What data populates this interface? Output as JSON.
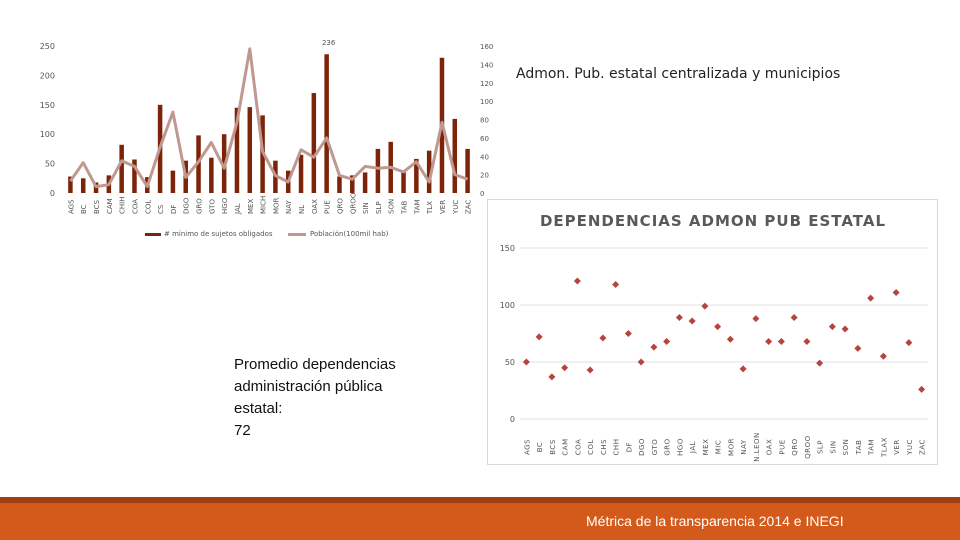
{
  "slide": {
    "title_chart1": "Admon. Pub. estatal centralizada y municipios",
    "note_lines": [
      "Promedio dependencias",
      "administración pública",
      "estatal:",
      "72"
    ],
    "footer": "Métrica de la transparencia 2014 e INEGI"
  },
  "colors": {
    "bar": "#7b2409",
    "line": "#c09890",
    "point": "#b5453c",
    "footer": "#d45a1b",
    "footer_dark": "#a23f12"
  },
  "chart_data": [
    {
      "type": "bar",
      "categories": [
        "AGS",
        "BC",
        "BCS",
        "CAM",
        "CHIH",
        "COA",
        "COL",
        "CS",
        "DF",
        "DGO",
        "GRO",
        "GTO",
        "HGO",
        "JAL",
        "MEX",
        "MICH",
        "MOR",
        "NAY",
        "NL",
        "OAX",
        "PUE",
        "QRO",
        "QROO",
        "SIN",
        "SLP",
        "SON",
        "TAB",
        "TAM",
        "TLX",
        "VER",
        "YUC",
        "ZAC"
      ],
      "series": [
        {
          "name": "# mínimo de sujetos obligados",
          "axis": "left",
          "values": [
            28,
            25,
            18,
            30,
            82,
            57,
            27,
            150,
            38,
            55,
            98,
            60,
            100,
            145,
            146,
            132,
            55,
            38,
            65,
            170,
            236,
            28,
            30,
            35,
            75,
            87,
            38,
            58,
            72,
            230,
            126,
            75
          ]
        },
        {
          "name": "Población(100mil hab)",
          "axis": "right",
          "values": [
            13,
            33,
            7,
            9,
            35,
            29,
            7,
            50,
            88,
            17,
            34,
            55,
            27,
            77,
            157,
            45,
            19,
            12,
            47,
            39,
            60,
            19,
            15,
            29,
            27,
            28,
            23,
            34,
            12,
            77,
            20,
            15
          ]
        }
      ],
      "value_label": "236",
      "y_left": {
        "min": 0,
        "max": 250,
        "ticks": [
          "250",
          "200",
          "150",
          "100",
          "50",
          "0"
        ]
      },
      "y_right": {
        "min": 0,
        "max": 160,
        "ticks": [
          "160",
          "140",
          "120",
          "100",
          "80",
          "60",
          "40",
          "20",
          "0"
        ]
      },
      "legend_position": "bottom"
    },
    {
      "type": "scatter",
      "title": "DEPENDENCIAS ADMON PUB ESTATAL",
      "categories": [
        "AGS",
        "BC",
        "BCS",
        "CAM",
        "COA",
        "COL",
        "CHS",
        "CHH",
        "DF",
        "DGO",
        "GTO",
        "GRO",
        "HGO",
        "JAL",
        "MEX",
        "MIC",
        "MOR",
        "NAY",
        "N.LEON",
        "OAX",
        "PUE",
        "QRO",
        "QROO",
        "SLP",
        "SIN",
        "SON",
        "TAB",
        "TAM",
        "TLAX",
        "VER",
        "YUC",
        "ZAC"
      ],
      "values": [
        50,
        72,
        37,
        45,
        121,
        43,
        71,
        118,
        75,
        50,
        63,
        68,
        89,
        86,
        99,
        81,
        70,
        44,
        88,
        68,
        68,
        89,
        68,
        49,
        81,
        79,
        62,
        106,
        55,
        111,
        67,
        26
      ],
      "ylim": [
        0,
        150
      ],
      "yticks": [
        "0",
        "50",
        "100",
        "150"
      ],
      "grid": true
    }
  ]
}
